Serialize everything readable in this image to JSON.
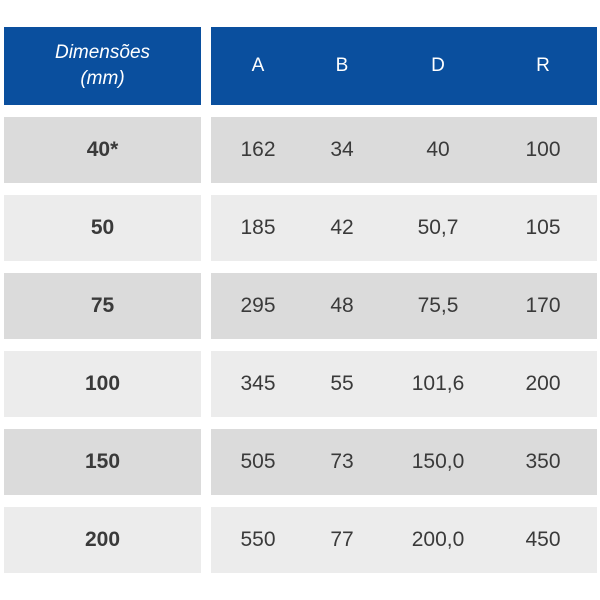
{
  "table": {
    "header": {
      "label_line1": "Dimensões",
      "label_line2": "(mm)",
      "columns": [
        "A",
        "B",
        "D",
        "R"
      ]
    },
    "rows": [
      {
        "size": "40*",
        "values": [
          "162",
          "34",
          "40",
          "100"
        ]
      },
      {
        "size": "50",
        "values": [
          "185",
          "42",
          "50,7",
          "105"
        ]
      },
      {
        "size": "75",
        "values": [
          "295",
          "48",
          "75,5",
          "170"
        ]
      },
      {
        "size": "100",
        "values": [
          "345",
          "55",
          "101,6",
          "200"
        ]
      },
      {
        "size": "150",
        "values": [
          "505",
          "73",
          "150,0",
          "350"
        ]
      },
      {
        "size": "200",
        "values": [
          "550",
          "77",
          "200,0",
          "450"
        ]
      }
    ]
  },
  "colors": {
    "header_bg": "#0a4f9e",
    "row_dark": "#dbdbdb",
    "row_light": "#ececec",
    "text": "#3a3a3a"
  }
}
